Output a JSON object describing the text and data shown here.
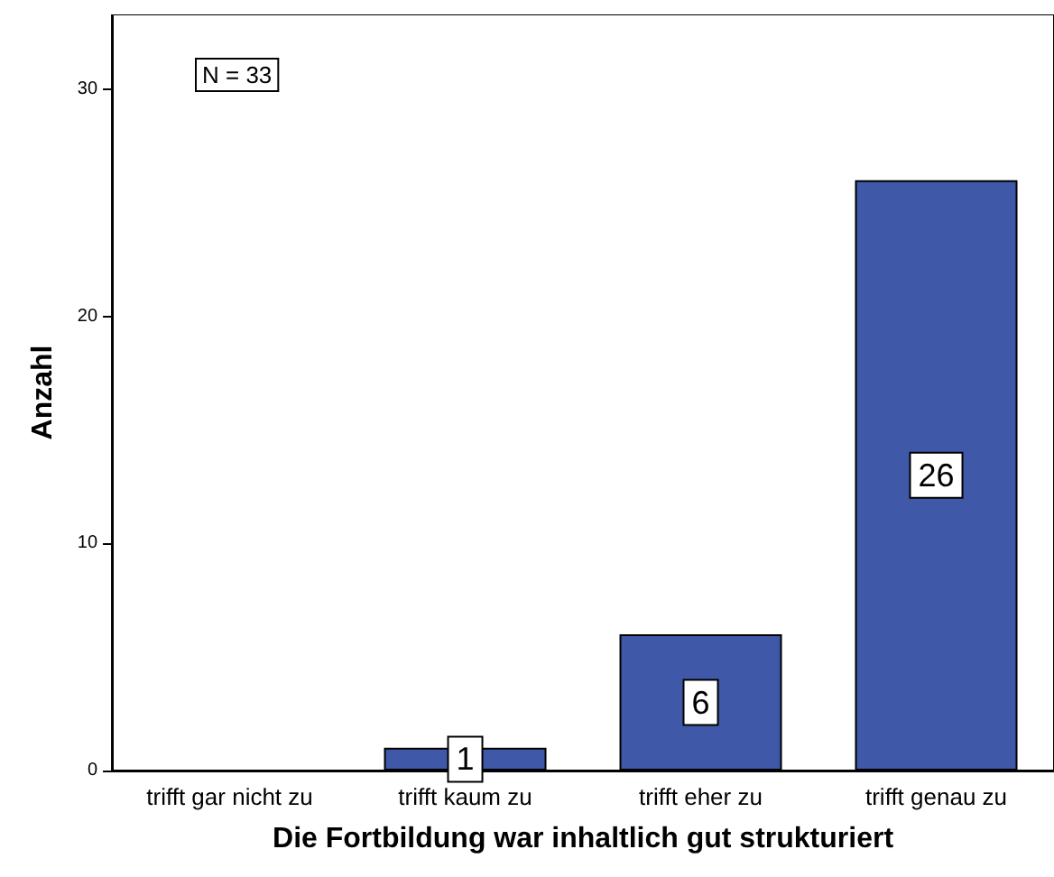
{
  "chart_data": {
    "type": "bar",
    "xlabel": "Die Fortbildung war inhaltlich gut strukturiert",
    "ylabel": "Anzahl",
    "categories": [
      "trifft gar nicht zu",
      "trifft kaum zu",
      "trifft eher zu",
      "trifft genau zu"
    ],
    "values": [
      0,
      1,
      6,
      26
    ],
    "color": "#3f58a8",
    "value_labels": [
      null,
      "1",
      "6",
      "26"
    ],
    "ylim": [
      0,
      33.3
    ],
    "yticks": [
      0,
      10,
      20,
      30
    ],
    "grid": false,
    "annotations": [
      "N = 33"
    ]
  }
}
